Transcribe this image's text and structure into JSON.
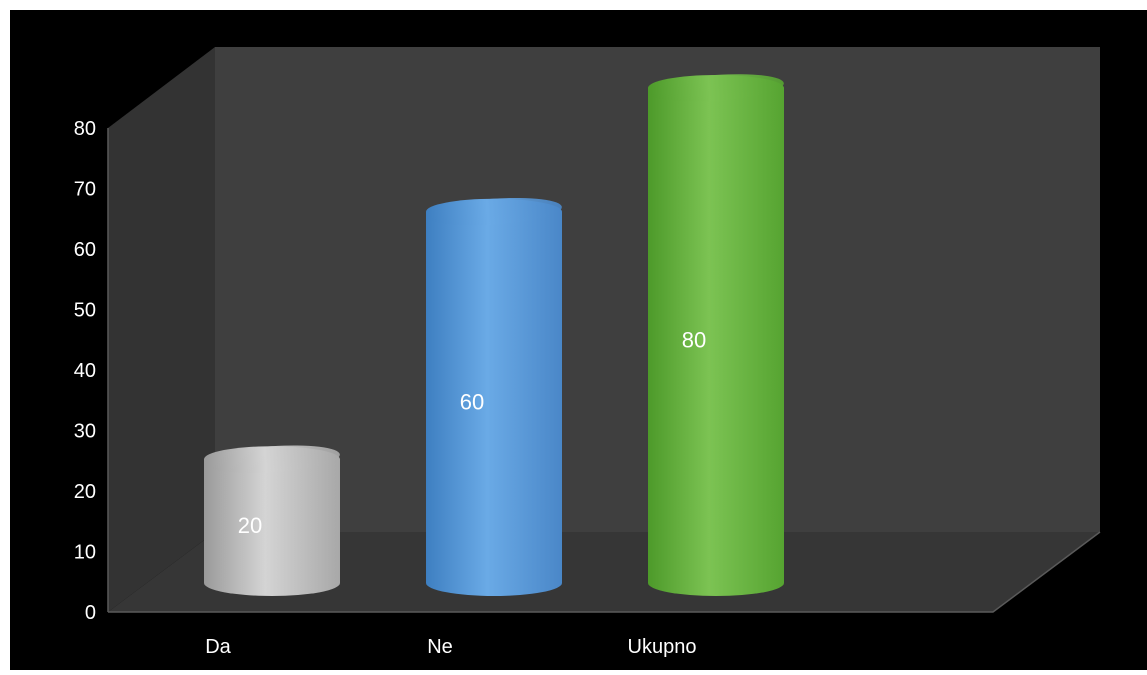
{
  "chart_data": {
    "type": "bar",
    "style": "3d-cylinder",
    "categories": [
      "Da",
      "Ne",
      "Ukupno"
    ],
    "series": [
      {
        "values": [
          20,
          60,
          80
        ]
      }
    ],
    "data_labels": [
      "20",
      "60",
      "80"
    ],
    "colors": {
      "Da": "#bfbfbf",
      "Ne": "#5b9bd5",
      "Ukupno": "#70ad47"
    },
    "background": "#000000",
    "wall_color": "#3f3f3f",
    "floor_color": "#333333",
    "ylim": [
      0,
      80
    ],
    "yticks": [
      0,
      10,
      20,
      30,
      40,
      50,
      60,
      70,
      80
    ],
    "grid": false,
    "legend": "none",
    "title": "",
    "xlabel": "",
    "ylabel": ""
  }
}
